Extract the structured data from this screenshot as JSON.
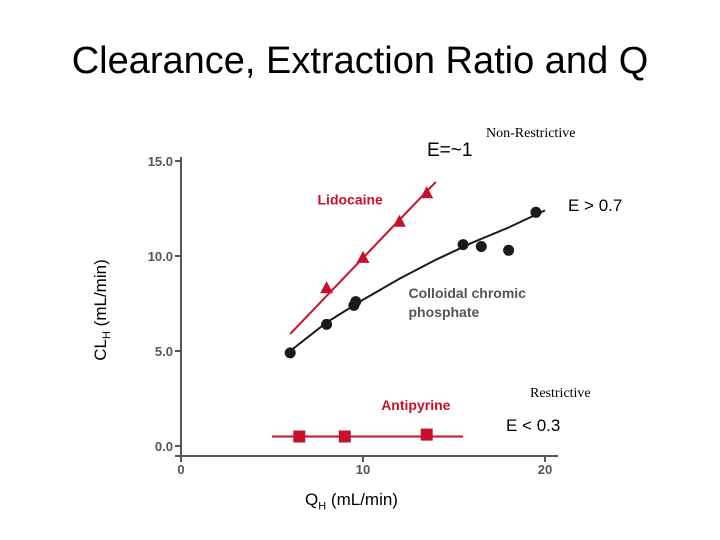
{
  "slide": {
    "title": "Clearance, Extraction Ratio and Q",
    "annotations": {
      "e_approx_1": "E=~1",
      "non_restrictive": "Non-Restrictive",
      "e_gt": "E > 0.7",
      "restrictive": "Restrictive",
      "e_lt": "E < 0.3"
    },
    "ylabel": {
      "main": "CL",
      "sub": "H",
      "rest": " (mL/min)"
    },
    "xlabel": {
      "main": "Q",
      "sub": "H",
      "rest": " (mL/min)"
    }
  },
  "chart_data": {
    "type": "scatter",
    "xlim": [
      0,
      20
    ],
    "ylim": [
      0,
      15
    ],
    "x_ticks": [
      "0",
      "10",
      "20"
    ],
    "y_ticks": [
      "0.0",
      "5.0",
      "10.0",
      "15.0"
    ],
    "grid": false,
    "colors": {
      "red": "#c8102e",
      "dark": "#1a1a1a",
      "axis": "#555555"
    },
    "series": [
      {
        "name": "Lidocaine",
        "marker": "triangle",
        "color": "#c8102e",
        "points": [
          [
            8.0,
            8.3
          ],
          [
            10.0,
            9.9
          ],
          [
            12.0,
            11.8
          ],
          [
            13.5,
            13.3
          ]
        ],
        "fit": [
          [
            6.0,
            5.9
          ],
          [
            14.0,
            13.9
          ]
        ],
        "label_pos": [
          7.5,
          12.7
        ]
      },
      {
        "name": "Colloidal chromic phosphate",
        "name_lines": [
          "Colloidal chromic",
          "phosphate"
        ],
        "marker": "circle",
        "color": "#1a1a1a",
        "points": [
          [
            6.0,
            4.9
          ],
          [
            8.0,
            6.4
          ],
          [
            9.5,
            7.4
          ],
          [
            9.6,
            7.6
          ],
          [
            15.5,
            10.6
          ],
          [
            16.5,
            10.5
          ],
          [
            18.0,
            10.3
          ],
          [
            19.5,
            12.3
          ]
        ],
        "fit": [
          [
            6.0,
            5.0
          ],
          [
            8.0,
            6.5
          ],
          [
            10.0,
            7.7
          ],
          [
            12.0,
            8.8
          ],
          [
            14.0,
            9.8
          ],
          [
            16.0,
            10.7
          ],
          [
            18.0,
            11.5
          ],
          [
            20.0,
            12.4
          ]
        ],
        "label_pos": [
          12.5,
          7.8
        ]
      },
      {
        "name": "Antipyrine",
        "marker": "square",
        "color": "#c8102e",
        "points": [
          [
            6.5,
            0.5
          ],
          [
            9.0,
            0.5
          ],
          [
            13.5,
            0.6
          ]
        ],
        "fit": [
          [
            5.0,
            0.5
          ],
          [
            15.5,
            0.5
          ]
        ],
        "label_pos": [
          11.0,
          1.9
        ]
      }
    ]
  }
}
